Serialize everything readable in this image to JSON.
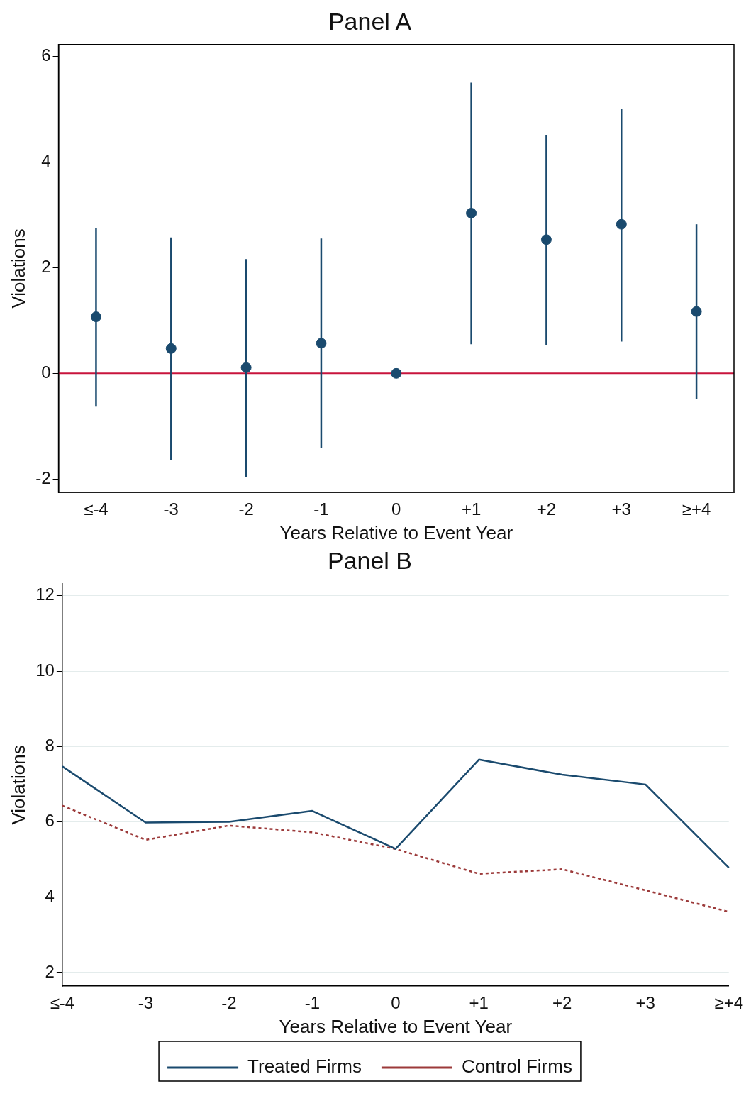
{
  "chart_data": [
    {
      "type": "scatter",
      "title": "Panel A",
      "xlabel": "Years Relative to Event Year",
      "ylabel": "Violations",
      "categories": [
        "≤-4",
        "-3",
        "-2",
        "-1",
        "0",
        "+1",
        "+2",
        "+3",
        "≥+4"
      ],
      "values": [
        1.07,
        0.47,
        0.11,
        0.57,
        0,
        3.03,
        2.53,
        2.82,
        1.17
      ],
      "errors": [
        [
          -0.63,
          2.75
        ],
        [
          -1.64,
          2.57
        ],
        [
          -1.96,
          2.16
        ],
        [
          -1.41,
          2.55
        ],
        null,
        [
          0.55,
          5.5
        ],
        [
          0.53,
          4.51
        ],
        [
          0.6,
          5.0
        ],
        [
          -0.48,
          2.82
        ]
      ],
      "color": "#1a4a6e",
      "ylim": [
        -2.25,
        6.22
      ],
      "yticks": [
        -2,
        0,
        2,
        4,
        6
      ],
      "marker": "circle",
      "ref_lines": [
        {
          "axis": "y",
          "value": 0,
          "color": "#c8143c"
        }
      ]
    },
    {
      "type": "line",
      "title": "Panel B",
      "xlabel": "Years Relative to Event Year",
      "ylabel": "Violations",
      "categories": [
        "≤-4",
        "-3",
        "-2",
        "-1",
        "0",
        "+1",
        "+2",
        "+3",
        "≥+4"
      ],
      "series": [
        {
          "name": "Treated Firms",
          "color": "#1a4a6e",
          "values": [
            7.47,
            5.98,
            6.0,
            6.29,
            5.28,
            7.65,
            7.25,
            6.99,
            4.78
          ]
        },
        {
          "name": "Control Firms",
          "color": "#9c3a3a",
          "line_style": "dotted",
          "values": [
            6.43,
            5.52,
            5.9,
            5.72,
            5.28,
            4.62,
            4.74,
            4.18,
            3.61
          ]
        }
      ],
      "ylim": [
        1.64,
        12.32
      ],
      "yticks": [
        2,
        4,
        6,
        8,
        10,
        12
      ],
      "grid": "y",
      "legend": "bottom",
      "marker": "none"
    }
  ]
}
